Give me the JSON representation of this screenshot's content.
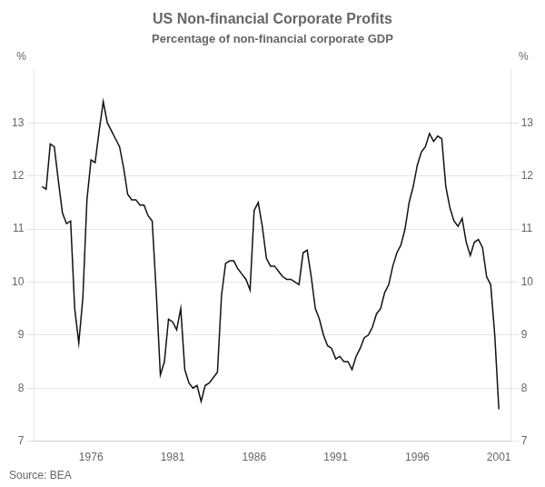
{
  "chart_data": {
    "type": "line",
    "title": "US Non-financial Corporate Profits",
    "subtitle": "Percentage of non-financial corporate GDP",
    "ylabel": "%",
    "y2label": "%",
    "source": "Source: BEA",
    "color": "#111111",
    "grid": true,
    "xlim": [
      1972.5,
      2001.75
    ],
    "xticks": [
      1976,
      1981,
      1986,
      1991,
      1996,
      2001
    ],
    "ylim": [
      7,
      14
    ],
    "yticks": [
      7,
      8,
      9,
      10,
      11,
      12,
      13
    ],
    "y2lim": [
      7,
      14
    ],
    "y2ticks": [
      7,
      8,
      9,
      10,
      11,
      12,
      13
    ],
    "x": [
      1973.0,
      1973.25,
      1973.5,
      1973.75,
      1974.0,
      1974.25,
      1974.5,
      1974.75,
      1975.0,
      1975.25,
      1975.5,
      1975.75,
      1976.0,
      1976.25,
      1976.5,
      1976.75,
      1977.0,
      1977.25,
      1977.5,
      1977.75,
      1978.0,
      1978.25,
      1978.5,
      1978.75,
      1979.0,
      1979.25,
      1979.5,
      1979.75,
      1980.0,
      1980.25,
      1980.5,
      1980.75,
      1981.0,
      1981.25,
      1981.5,
      1981.75,
      1982.0,
      1982.25,
      1982.5,
      1982.75,
      1983.0,
      1983.25,
      1983.5,
      1983.75,
      1984.0,
      1984.25,
      1984.5,
      1984.75,
      1985.0,
      1985.25,
      1985.5,
      1985.75,
      1986.0,
      1986.25,
      1986.5,
      1986.75,
      1987.0,
      1987.25,
      1987.5,
      1987.75,
      1988.0,
      1988.25,
      1988.5,
      1988.75,
      1989.0,
      1989.25,
      1989.5,
      1989.75,
      1990.0,
      1990.25,
      1990.5,
      1990.75,
      1991.0,
      1991.25,
      1991.5,
      1991.75,
      1992.0,
      1992.25,
      1992.5,
      1992.75,
      1993.0,
      1993.25,
      1993.5,
      1993.75,
      1994.0,
      1994.25,
      1994.5,
      1994.75,
      1995.0,
      1995.25,
      1995.5,
      1995.75,
      1996.0,
      1996.25,
      1996.5,
      1996.75,
      1997.0,
      1997.25,
      1997.5,
      1997.75,
      1998.0,
      1998.25,
      1998.5,
      1998.75,
      1999.0,
      1999.25,
      1999.5,
      1999.75,
      2000.0,
      2000.25,
      2000.5,
      2000.75,
      2001.0
    ],
    "values": [
      11.8,
      11.75,
      12.6,
      12.55,
      11.9,
      11.3,
      11.1,
      11.15,
      9.5,
      8.85,
      9.7,
      11.55,
      12.3,
      12.25,
      12.85,
      13.4,
      13.0,
      12.85,
      12.7,
      12.55,
      12.15,
      11.65,
      11.55,
      11.55,
      11.45,
      11.45,
      11.25,
      11.15,
      9.8,
      8.25,
      8.5,
      9.3,
      9.25,
      9.1,
      9.5,
      8.35,
      8.1,
      8.0,
      8.05,
      7.75,
      8.05,
      8.1,
      8.2,
      8.3,
      9.75,
      10.35,
      10.4,
      10.4,
      10.25,
      10.15,
      10.05,
      9.85,
      11.35,
      11.5,
      11.05,
      10.45,
      10.3,
      10.3,
      10.2,
      10.1,
      10.05,
      10.05,
      10.0,
      9.95,
      10.55,
      10.6,
      10.1,
      9.5,
      9.3,
      9.0,
      8.8,
      8.75,
      8.55,
      8.6,
      8.5,
      8.5,
      8.35,
      8.6,
      8.75,
      8.95,
      9.0,
      9.15,
      9.4,
      9.5,
      9.8,
      9.95,
      10.3,
      10.55,
      10.7,
      11.0,
      11.5,
      11.8,
      12.2,
      12.45,
      12.55,
      12.8,
      12.65,
      12.75,
      12.7,
      11.8,
      11.4,
      11.15,
      11.05,
      11.2,
      10.75,
      10.5,
      10.75,
      10.8,
      10.65,
      10.1,
      9.95,
      9.0,
      7.6
    ]
  }
}
